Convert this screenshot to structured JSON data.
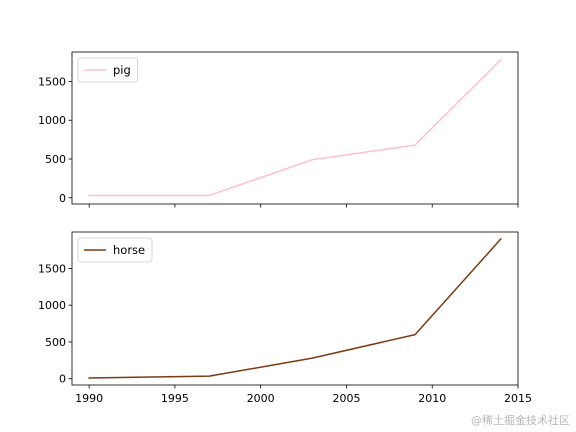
{
  "chart_data": [
    {
      "type": "line",
      "series": [
        {
          "name": "pig",
          "color": "#ffc0cb",
          "x": [
            1990,
            1997,
            2003,
            2009,
            2014
          ],
          "y": [
            30,
            30,
            490,
            680,
            1780
          ]
        }
      ],
      "xlim": [
        1989.0,
        2015.0
      ],
      "ylim": [
        -80,
        1880
      ],
      "yticks": [
        0,
        500,
        1000,
        1500
      ],
      "xticks": [
        1990,
        1995,
        2000,
        2005,
        2010,
        2015
      ],
      "show_xtick_labels": false,
      "legend_position": "upper-left",
      "grid": false
    },
    {
      "type": "line",
      "series": [
        {
          "name": "horse",
          "color": "#7b3b10",
          "x": [
            1990,
            1997,
            2003,
            2009,
            2014
          ],
          "y": [
            10,
            35,
            280,
            600,
            1900
          ]
        }
      ],
      "xlim": [
        1989.0,
        2015.0
      ],
      "ylim": [
        -85,
        1995
      ],
      "yticks": [
        0,
        500,
        1000,
        1500
      ],
      "xticks": [
        1990,
        1995,
        2000,
        2005,
        2010,
        2015
      ],
      "show_xtick_labels": true,
      "legend_position": "upper-left",
      "grid": false
    }
  ],
  "watermark": "@稀土掘金技术社区"
}
